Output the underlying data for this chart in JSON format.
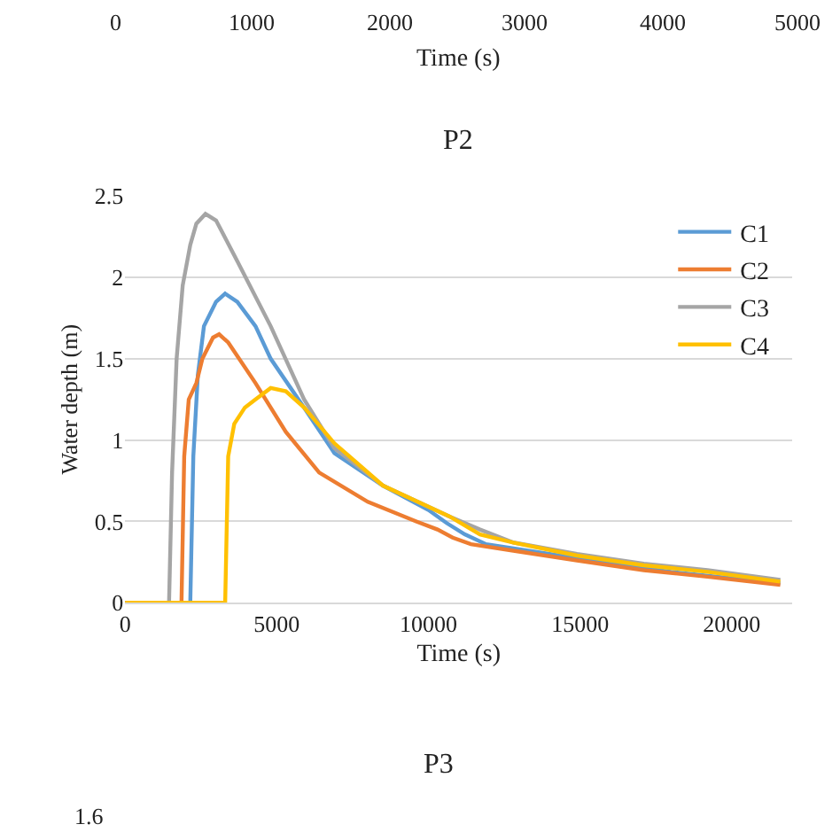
{
  "chart_data": {
    "type": "line",
    "title": "P2",
    "xlabel": "Time (s)",
    "ylabel": "Water depth (m)",
    "xlim": [
      0,
      22000
    ],
    "xticks": [
      0,
      5000,
      10000,
      15000,
      20000
    ],
    "ylim": [
      0,
      2.5
    ],
    "yticks": [
      0,
      0.5,
      1,
      1.5,
      2,
      2.5
    ],
    "grid": "y",
    "legend": "top right",
    "annotations": [
      "0",
      "1000",
      "2000",
      "3000",
      "4000",
      "5000",
      "Time (s)",
      "P3",
      "1.6"
    ],
    "series": [
      {
        "name": "C1",
        "color": "#5b9bd5",
        "x": [
          0,
          2150,
          2250,
          2400,
          2600,
          3000,
          3300,
          3700,
          4300,
          4800,
          5900,
          6900,
          8500,
          10000,
          10600,
          11200,
          11900,
          14000,
          16000,
          18000,
          20000,
          21600
        ],
        "values": [
          0,
          0,
          0.9,
          1.4,
          1.7,
          1.85,
          1.9,
          1.85,
          1.7,
          1.5,
          1.2,
          0.92,
          0.72,
          0.57,
          0.49,
          0.42,
          0.36,
          0.3,
          0.24,
          0.19,
          0.15,
          0.12
        ]
      },
      {
        "name": "C2",
        "color": "#ed7d31",
        "x": [
          0,
          1860,
          1950,
          2100,
          2350,
          2550,
          2900,
          3100,
          3400,
          4300,
          5300,
          6400,
          8000,
          9600,
          10300,
          10800,
          11400,
          12800,
          14900,
          17100,
          19200,
          21600
        ],
        "values": [
          0,
          0,
          0.9,
          1.25,
          1.35,
          1.5,
          1.63,
          1.65,
          1.6,
          1.35,
          1.05,
          0.8,
          0.62,
          0.5,
          0.45,
          0.4,
          0.36,
          0.32,
          0.26,
          0.2,
          0.16,
          0.11
        ]
      },
      {
        "name": "C3",
        "color": "#a5a5a5",
        "x": [
          0,
          1450,
          1550,
          1700,
          1900,
          2150,
          2350,
          2650,
          3000,
          3700,
          4800,
          5900,
          6900,
          8500,
          10700,
          11700,
          12800,
          14900,
          17100,
          19200,
          21600
        ],
        "values": [
          0,
          0,
          0.8,
          1.5,
          1.95,
          2.2,
          2.33,
          2.39,
          2.35,
          2.1,
          1.7,
          1.25,
          0.95,
          0.72,
          0.53,
          0.45,
          0.37,
          0.3,
          0.24,
          0.2,
          0.14
        ]
      },
      {
        "name": "C4",
        "color": "#ffc000",
        "x": [
          0,
          3300,
          3400,
          3600,
          3950,
          4300,
          4800,
          5300,
          5900,
          6900,
          8500,
          10700,
          11700,
          12800,
          14900,
          17100,
          19200,
          21600
        ],
        "values": [
          0,
          0,
          0.9,
          1.1,
          1.2,
          1.25,
          1.32,
          1.3,
          1.2,
          0.98,
          0.72,
          0.53,
          0.42,
          0.37,
          0.29,
          0.23,
          0.19,
          0.13
        ]
      }
    ]
  }
}
